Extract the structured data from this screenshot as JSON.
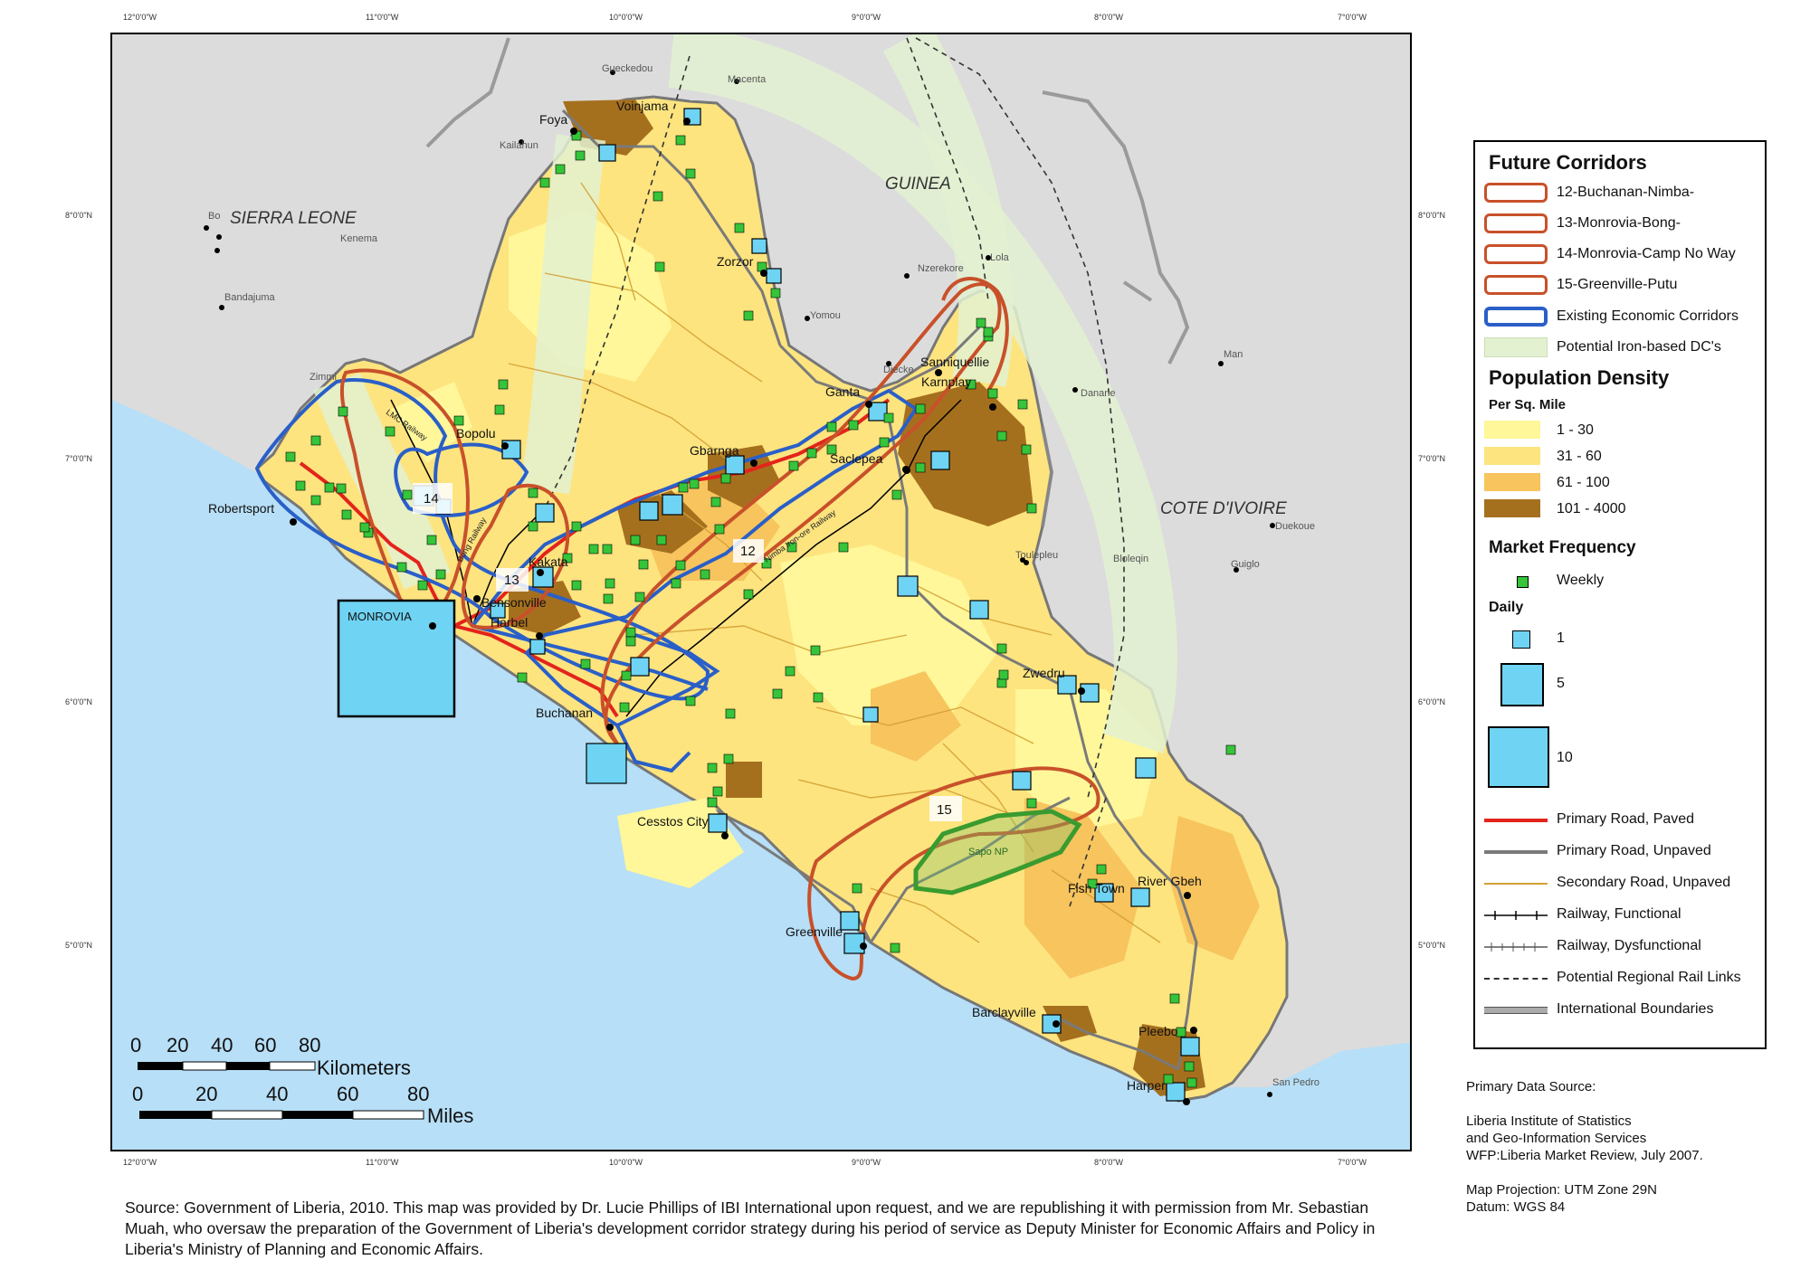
{
  "map": {
    "country_labels": {
      "sierra_leone": "SIERRA LEONE",
      "guinea": "GUINEA",
      "cote_divoire": "COTE D'IVOIRE"
    },
    "cities": {
      "foya": "Foya",
      "voinjama": "Voinjama",
      "zorzor": "Zorzor",
      "sanniquellie": "Sanniquellie",
      "karnplay": "Karnplay",
      "ganta": "Ganta",
      "bopolu": "Bopolu",
      "gbarnga": "Gbarnga",
      "saclepea": "Saclepea",
      "robertsport": "Robertsport",
      "kakata": "Kakata",
      "bensonville": "Bensonville",
      "harbel": "Harbel",
      "monrovia": "MONROVIA",
      "buchanan": "Buchanan",
      "zwedru": "Zwedru",
      "cestos_city": "Cesstos City",
      "greenville": "Greenville",
      "fish_town": "Fish Town",
      "river_gbeh": "River Gbeh",
      "barclayville": "Barclayville",
      "pleebo": "Pleebo",
      "harper": "Harper"
    },
    "foreign_towns": {
      "gueckedou": "Gueckedou",
      "macenta": "Macenta",
      "kailahun": "Kailahun",
      "bo": "Bo",
      "kenema": "Kenema",
      "bandajuma": "Bandajuma",
      "zimmi": "Zimmi",
      "nzerekore": "Nzerekore",
      "lola": "Lola",
      "yomou": "Yomou",
      "diecke": "Diecke",
      "danane": "Danane",
      "man": "Man",
      "toulepleu": "Toulepleu",
      "bloleqin": "Bloleqin",
      "duekoue": "Duekoue",
      "guiglo": "Guiglo",
      "san_pedro": "San Pedro"
    },
    "park": "Sapo NP",
    "corridor_numbers": [
      "14",
      "13",
      "12",
      "15"
    ],
    "railway_labels": {
      "lmc": "LMC Railway",
      "bong": "Bong Railway",
      "nimba": "Nimba Iron-ore Railway"
    },
    "graticule_lon": [
      "12°0'0\"W",
      "11°0'0\"W",
      "10°0'0\"W",
      "9°0'0\"W",
      "8°0'0\"W",
      "7°0'0\"W"
    ],
    "graticule_lat": [
      "8°0'0\"N",
      "7°0'0\"N",
      "6°0'0\"N",
      "5°0'0\"N"
    ]
  },
  "scale": {
    "km_ticks": [
      "0",
      "20",
      "40",
      "60",
      "80"
    ],
    "km_label": "Kilometers",
    "mi_ticks": [
      "0",
      "20",
      "40",
      "60",
      "80"
    ],
    "mi_label": "Miles"
  },
  "legend": {
    "future_title": "Future Corridors",
    "future_items": [
      "12-Buchanan-Nimba-",
      "13-Monrovia-Bong-",
      "14-Monrovia-Camp No Way",
      "15-Greenville-Putu"
    ],
    "existing": "Existing Economic Corridors",
    "iron_dc": "Potential Iron-based DC's",
    "pop_title": "Population Density",
    "pop_sub": "Per Sq. Mile",
    "pop_classes": [
      {
        "label": "1 - 30",
        "color": "#fff799"
      },
      {
        "label": "31 - 60",
        "color": "#fde47f"
      },
      {
        "label": "61 - 100",
        "color": "#f7c45e"
      },
      {
        "label": "101 - 4000",
        "color": "#a5701e"
      }
    ],
    "market_title": "Market Frequency",
    "weekly": "Weekly",
    "daily_title": "Daily",
    "daily_items": [
      "1",
      "5",
      "10"
    ],
    "lines": [
      {
        "label": "Primary Road, Paved",
        "color": "#e3241b"
      },
      {
        "label": "Primary Road, Unpaved",
        "color": "#7a7a7a"
      },
      {
        "label": "Secondary Road, Unpaved",
        "color": "#d4a135"
      },
      {
        "label": "Railway, Functional",
        "color": "#000000"
      },
      {
        "label": "Railway, Dysfunctional",
        "color": "#555555"
      },
      {
        "label": "Potential Regional Rail Links",
        "color": "#333333"
      },
      {
        "label": "International  Boundaries",
        "color": "#888888"
      }
    ]
  },
  "source_right": {
    "title": "Primary Data Source:",
    "line1": "Liberia Institute of Statistics",
    "line2": "and Geo-Information Services",
    "line3": "WFP:Liberia Market Review, July 2007.",
    "proj": "Map Projection: UTM Zone 29N",
    "datum": "Datum: WGS 84"
  },
  "footer": "Source: Government of Liberia, 2010. This map was provided by Dr. Lucie Phillips of IBI International upon request, and we are republishing it with permission from Mr. Sebastian Muah, who oversaw the preparation of the Government of Liberia's development corridor strategy during his period of service as Deputy Minister for Economic Affairs and Policy in Liberia's Ministry of Planning and Economic Affairs.",
  "colors": {
    "ocean": "#b7dff7",
    "neighbors": "#dcdcdc",
    "future_corridor": "#c8512a",
    "existing_corridor": "#2a5fc8",
    "iron_dc": "#e3f1d1",
    "market_daily": "#6fd3f3",
    "market_weekly": "#35c43a"
  }
}
